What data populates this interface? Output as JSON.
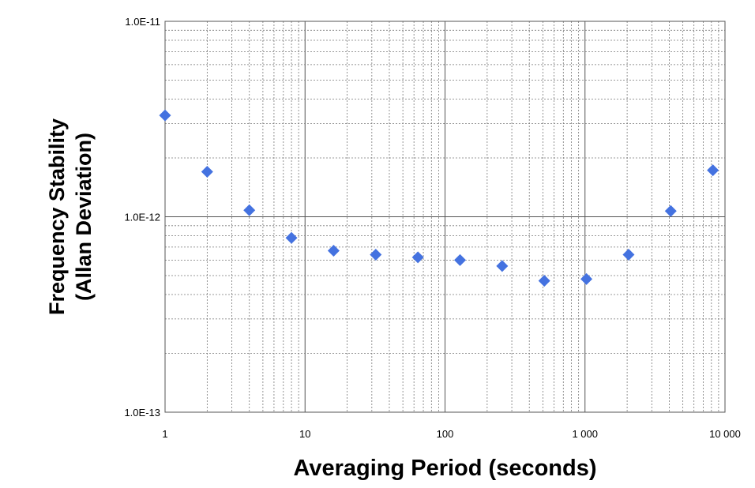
{
  "chart_data": {
    "type": "scatter",
    "title": "",
    "xlabel": "Averaging Period (seconds)",
    "ylabel_line1": "Frequency Stability",
    "ylabel_line2": "(Allan Deviation)",
    "x_scale": "log",
    "y_scale": "log",
    "xlim": [
      1,
      10000
    ],
    "ylim": [
      1e-13,
      1e-11
    ],
    "x_tick_labels": [
      "1",
      "10",
      "100",
      "1 000",
      "10 000"
    ],
    "y_tick_labels": [
      "1.0E-13",
      "1.0E-12",
      "1.0E-11"
    ],
    "grid": true,
    "legend": "none",
    "marker": "diamond",
    "marker_color": "#4472E0",
    "series": [
      {
        "points": [
          {
            "x": 1,
            "y": 3.3e-12
          },
          {
            "x": 2,
            "y": 1.7e-12
          },
          {
            "x": 4,
            "y": 1.08e-12
          },
          {
            "x": 8,
            "y": 7.8e-13
          },
          {
            "x": 16,
            "y": 6.7e-13
          },
          {
            "x": 32,
            "y": 6.4e-13
          },
          {
            "x": 64,
            "y": 6.2e-13
          },
          {
            "x": 128,
            "y": 6e-13
          },
          {
            "x": 256,
            "y": 5.6e-13
          },
          {
            "x": 512,
            "y": 4.7e-13
          },
          {
            "x": 1024,
            "y": 4.8e-13
          },
          {
            "x": 2048,
            "y": 6.4e-13
          },
          {
            "x": 4096,
            "y": 1.07e-12
          },
          {
            "x": 8192,
            "y": 1.73e-12
          }
        ]
      }
    ]
  }
}
